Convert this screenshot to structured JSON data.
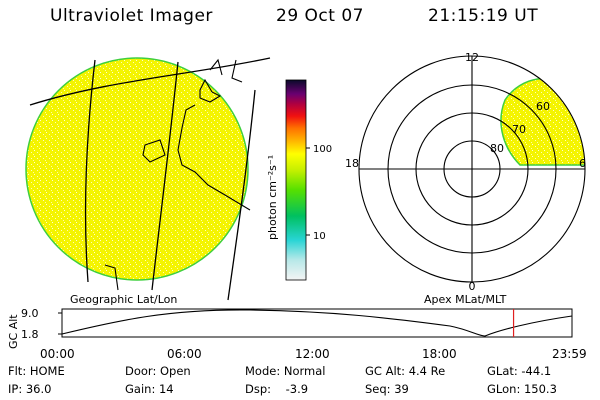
{
  "header": {
    "title": "Ultraviolet Imager",
    "date": "29 Oct 07",
    "time": "21:15:19 UT"
  },
  "colorbar": {
    "unit_label": "photon cm⁻²s⁻¹",
    "ticks": [
      "100",
      "10"
    ]
  },
  "panels": {
    "left_label": "Geographic Lat/Lon",
    "right_label": "Apex MLat/MLT"
  },
  "polar": {
    "mlt_labels": [
      "12",
      "18",
      "6",
      "0"
    ],
    "lat_labels": [
      "60",
      "70",
      "80"
    ]
  },
  "altitude_plot": {
    "y_label": "GC Alt",
    "y_ticks": [
      "9.0",
      "1.8"
    ],
    "x_ticks": [
      "00:00",
      "06:00",
      "12:00",
      "18:00",
      "23:59"
    ],
    "current_time_hours": 21.25
  },
  "footer": {
    "flt": "Flt: HOME",
    "ip": "IP: 36.0",
    "door": "Door: Open",
    "gain": "Gain: 14",
    "mode": "Mode: Normal",
    "dsp": "Dsp:    -3.9",
    "gcalt": "GC Alt: 4.4 Re",
    "seq": "Seq: 39",
    "glat": "GLat: -44.1",
    "glon": "GLon: 150.3"
  },
  "colors": {
    "image_fill": "#f4f400",
    "image_edge": "#3ecf3e",
    "time_marker": "#e02020"
  }
}
